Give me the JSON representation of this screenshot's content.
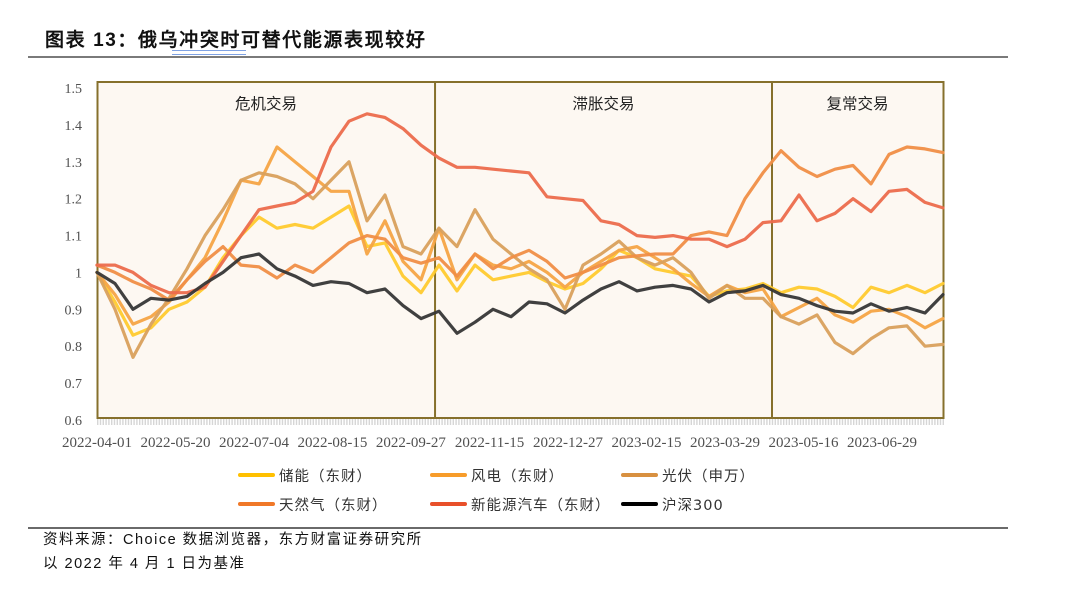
{
  "title": "图表 13：俄乌冲突时可替代能源表现较好",
  "source": "资料来源：Choice 数据浏览器，东方财富证券研究所",
  "note": "以 2022 年 4 月 1 日为基准",
  "chart_data": {
    "type": "line",
    "title": "俄乌冲突时可替代能源表现较好",
    "xlabel": "",
    "ylabel": "",
    "ylim": [
      0.6,
      1.5
    ],
    "grid": false,
    "legend_position": "bottom",
    "y_ticks": [
      {
        "label": "1.5",
        "value": 1.5
      },
      {
        "label": "1.4",
        "value": 1.4
      },
      {
        "label": "1.3",
        "value": 1.3
      },
      {
        "label": "1.2",
        "value": 1.2
      },
      {
        "label": "1.1",
        "value": 1.1
      },
      {
        "label": "1",
        "value": 1.0
      },
      {
        "label": "0.9",
        "value": 0.9
      },
      {
        "label": "0.8",
        "value": 0.8
      },
      {
        "label": "0.7",
        "value": 0.7
      },
      {
        "label": "0.6",
        "value": 0.6
      }
    ],
    "x_ticks": [
      {
        "label": "2022-04-01",
        "index": 0
      },
      {
        "label": "2022-05-20",
        "index": 4.36
      },
      {
        "label": "2022-07-04",
        "index": 8.72
      },
      {
        "label": "2022-08-15",
        "index": 13.08
      },
      {
        "label": "2022-09-27",
        "index": 17.44
      },
      {
        "label": "2022-11-15",
        "index": 21.81
      },
      {
        "label": "2022-12-27",
        "index": 26.17
      },
      {
        "label": "2023-02-15",
        "index": 30.53
      },
      {
        "label": "2023-03-29",
        "index": 34.89
      },
      {
        "label": "2023-05-16",
        "index": 39.25
      },
      {
        "label": "2023-06-29",
        "index": 43.61
      }
    ],
    "regions": [
      {
        "label": "危机交易",
        "start": 0,
        "end": 18.78
      },
      {
        "label": "滞胀交易",
        "start": 18.78,
        "end": 37.5
      },
      {
        "label": "复常交易",
        "start": 37.5,
        "end": 47
      }
    ],
    "series": [
      {
        "name": "储能（东财）",
        "color": "#FFC000",
        "plot_color": "#FFCA2E",
        "values": [
          1.0,
          0.92,
          0.83,
          0.85,
          0.9,
          0.92,
          0.96,
          1.04,
          1.1,
          1.15,
          1.12,
          1.13,
          1.12,
          1.15,
          1.18,
          1.07,
          1.08,
          0.99,
          0.945,
          1.02,
          0.95,
          1.02,
          0.98,
          0.99,
          1.0,
          0.975,
          0.955,
          0.97,
          1.01,
          1.06,
          1.04,
          1.01,
          1.0,
          0.99,
          0.935,
          0.95,
          0.955,
          0.97,
          0.945,
          0.96,
          0.955,
          0.935,
          0.905,
          0.96,
          0.945,
          0.965,
          0.945,
          0.97
        ]
      },
      {
        "name": "风电（东财）",
        "color": "#F79C2A",
        "plot_color": "#F6A445",
        "values": [
          1.0,
          0.94,
          0.86,
          0.88,
          0.92,
          0.98,
          1.04,
          1.14,
          1.25,
          1.24,
          1.34,
          1.3,
          1.26,
          1.22,
          1.22,
          1.05,
          1.14,
          1.03,
          0.98,
          1.12,
          0.98,
          1.05,
          1.02,
          1.01,
          1.03,
          1.0,
          0.96,
          1.0,
          1.03,
          1.06,
          1.07,
          1.04,
          1.01,
          0.97,
          0.935,
          0.965,
          0.945,
          0.955,
          0.88,
          0.905,
          0.93,
          0.885,
          0.865,
          0.895,
          0.9,
          0.88,
          0.85,
          0.875
        ]
      },
      {
        "name": "光伏（申万）",
        "color": "#D89040",
        "plot_color": "#D9A05C",
        "values": [
          1.0,
          0.9,
          0.77,
          0.86,
          0.93,
          1.01,
          1.1,
          1.17,
          1.25,
          1.27,
          1.26,
          1.24,
          1.2,
          1.25,
          1.3,
          1.14,
          1.21,
          1.07,
          1.05,
          1.12,
          1.07,
          1.17,
          1.09,
          1.05,
          1.01,
          0.98,
          0.9,
          1.02,
          1.05,
          1.085,
          1.04,
          1.02,
          1.04,
          1.0,
          0.93,
          0.965,
          0.93,
          0.93,
          0.88,
          0.86,
          0.885,
          0.81,
          0.78,
          0.82,
          0.85,
          0.855,
          0.8,
          0.805
        ]
      },
      {
        "name": "天然气（东财）",
        "color": "#F07828",
        "plot_color": "#F08E46",
        "values": [
          1.02,
          1.0,
          0.975,
          0.955,
          0.925,
          0.98,
          1.03,
          1.07,
          1.02,
          1.015,
          0.985,
          1.02,
          1.0,
          1.04,
          1.08,
          1.1,
          1.09,
          1.04,
          1.025,
          1.04,
          0.99,
          1.05,
          1.01,
          1.04,
          1.06,
          1.03,
          0.985,
          1.0,
          1.02,
          1.04,
          1.045,
          1.05,
          1.05,
          1.1,
          1.11,
          1.1,
          1.2,
          1.27,
          1.33,
          1.285,
          1.26,
          1.28,
          1.29,
          1.24,
          1.32,
          1.34,
          1.335,
          1.325
        ]
      },
      {
        "name": "新能源汽车（东财）",
        "color": "#E8502A",
        "plot_color": "#EC6C4C",
        "values": [
          1.02,
          1.02,
          1.0,
          0.965,
          0.945,
          0.945,
          0.96,
          1.03,
          1.1,
          1.17,
          1.18,
          1.19,
          1.22,
          1.34,
          1.41,
          1.43,
          1.42,
          1.39,
          1.345,
          1.31,
          1.285,
          1.285,
          1.28,
          1.275,
          1.27,
          1.205,
          1.2,
          1.195,
          1.14,
          1.13,
          1.1,
          1.095,
          1.1,
          1.09,
          1.09,
          1.07,
          1.09,
          1.135,
          1.14,
          1.21,
          1.14,
          1.16,
          1.2,
          1.165,
          1.22,
          1.225,
          1.19,
          1.175
        ]
      },
      {
        "name": "沪深300",
        "color": "#000000",
        "plot_color": "#363636",
        "values": [
          1.0,
          0.97,
          0.9,
          0.93,
          0.925,
          0.935,
          0.97,
          1.0,
          1.04,
          1.05,
          1.01,
          0.99,
          0.965,
          0.975,
          0.97,
          0.945,
          0.955,
          0.91,
          0.875,
          0.895,
          0.835,
          0.865,
          0.9,
          0.88,
          0.92,
          0.915,
          0.89,
          0.925,
          0.955,
          0.975,
          0.95,
          0.96,
          0.965,
          0.955,
          0.92,
          0.945,
          0.95,
          0.965,
          0.94,
          0.93,
          0.91,
          0.895,
          0.89,
          0.915,
          0.895,
          0.905,
          0.89,
          0.94
        ]
      }
    ]
  }
}
